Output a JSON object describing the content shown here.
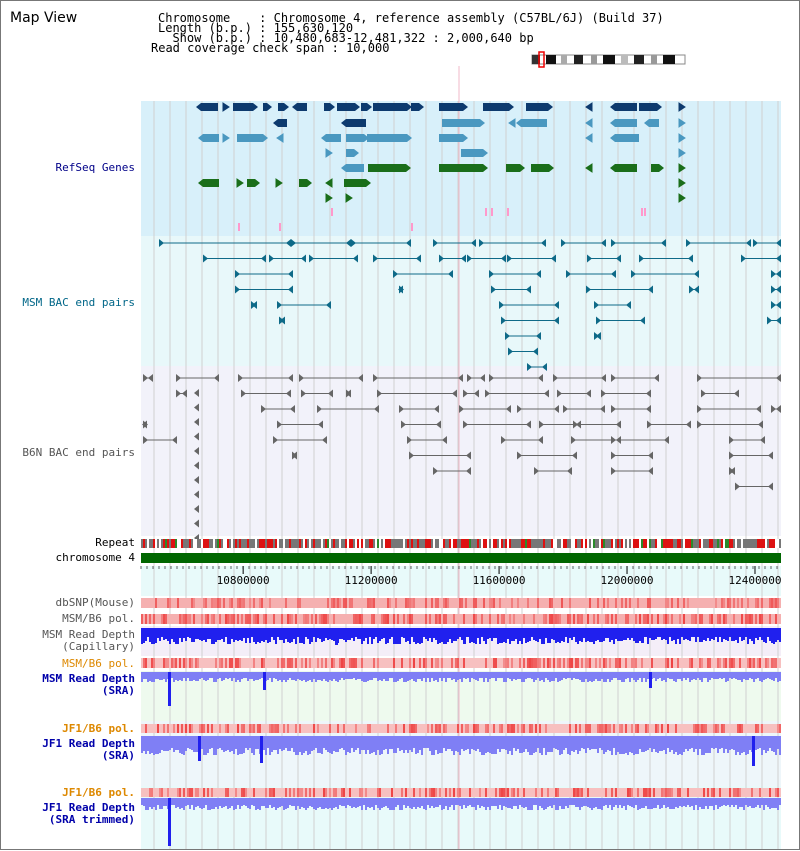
{
  "view": {
    "title": "Map View",
    "header": {
      "line1": "Chromosome    : Chromosome 4, reference assembly (C57BL/6J) (Build 37)",
      "line2": "Length (b.p.) : 155,630,120",
      "line3": "  Show (b.p.) : 10,480,683-12,481,322 : 2,000,640 bp",
      "line4": "Read coverage check span : 10,000"
    }
  },
  "tracks": {
    "refseq": {
      "label": "RefSeq Genes",
      "color": "#000088"
    },
    "msm_bac": {
      "label": "MSM BAC end pairs",
      "color": "#006688"
    },
    "b6n_bac": {
      "label": "B6N BAC end pairs",
      "color": "#555555"
    },
    "repeat": {
      "label": "Repeat"
    },
    "chromosome": {
      "label": "chromosome 4"
    },
    "dbsnp": {
      "label": "dbSNP(Mouse)"
    },
    "msm_b6_pol": {
      "label": "MSM/B6 pol."
    },
    "msm_depth_cap": {
      "label": "MSM Read Depth\n(Capillary)"
    },
    "msm_b6_pol2": {
      "label": "MSM/B6 pol.",
      "color": "#dd8800"
    },
    "msm_depth_sra": {
      "label": "MSM Read Depth\n(SRA)",
      "color": "#0000aa"
    },
    "jf1_b6_pol": {
      "label": "JF1/B6 pol.",
      "color": "#dd8800"
    },
    "jf1_depth_sra": {
      "label": "JF1 Read Depth\n(SRA)",
      "color": "#0000aa"
    },
    "jf1_b6_pol2": {
      "label": "JF1/B6 pol.",
      "color": "#dd8800"
    },
    "jf1_depth_trim": {
      "label": "JF1 Read Depth\n(SRA trimmed)",
      "color": "#0000aa"
    }
  },
  "axis": {
    "ticks": [
      "10800000",
      "11200000",
      "11600000",
      "12000000",
      "12400000"
    ],
    "tick_values": [
      10800000,
      11200000,
      11600000,
      12000000,
      12400000
    ],
    "range": [
      10480683,
      12481322
    ]
  },
  "colors": {
    "refseq_bg": "#d8f0fa",
    "msm_bg": "#e8f8fa",
    "b6n_bg": "#f2f2fa",
    "gene_dark": "#0d3a6e",
    "gene_mid": "#4a98c0",
    "gene_green": "#1a6e1a",
    "chrom_green": "#006600",
    "depth_blue": "#2020ee",
    "depth_light": "#7f7ff5",
    "pol_red": "#ee4444"
  }
}
